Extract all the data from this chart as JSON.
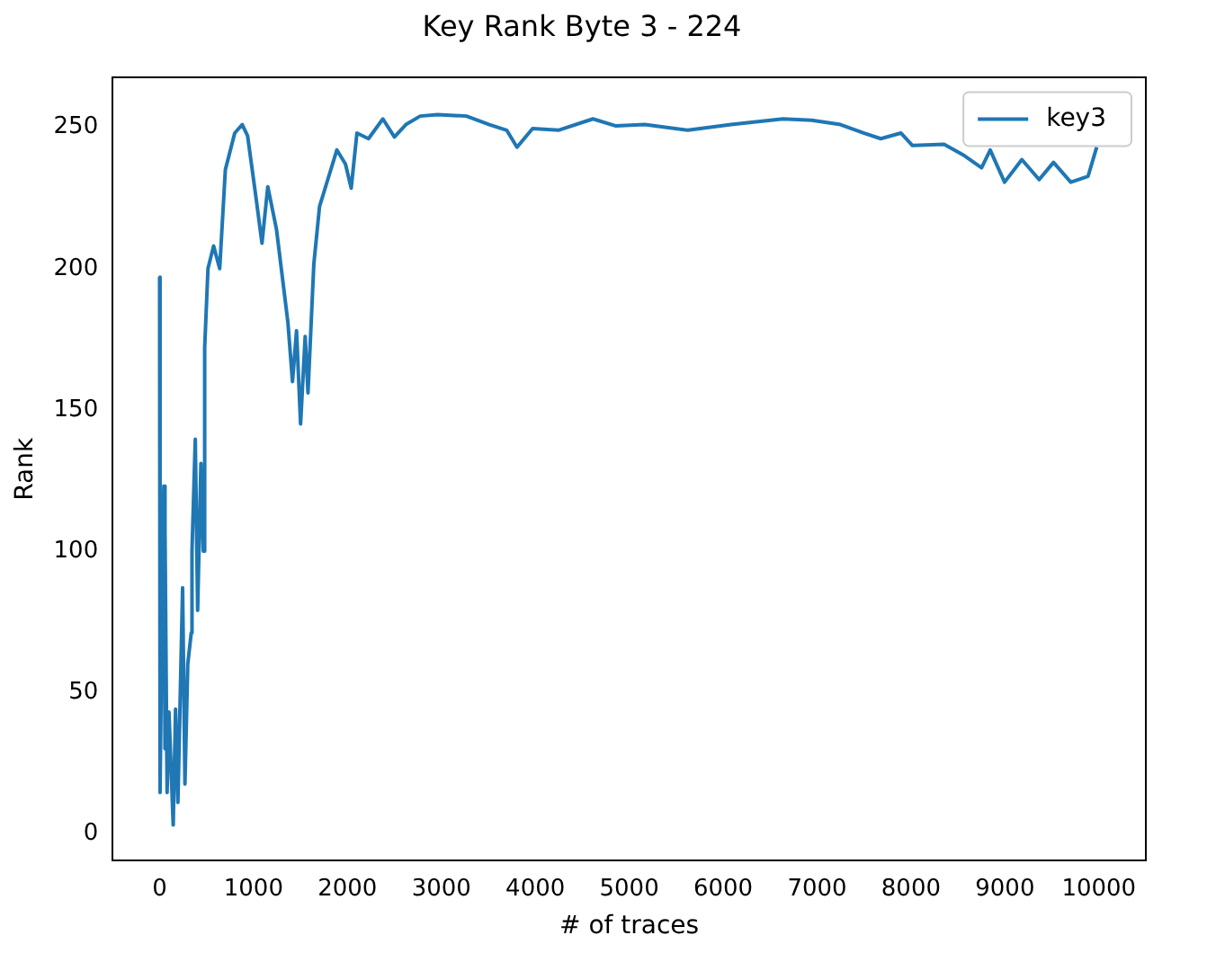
{
  "chart_data": {
    "type": "line",
    "title": "Key Rank Byte 3 - 224",
    "xlabel": "# of traces",
    "ylabel": "Rank",
    "xlim": [
      -500,
      10500
    ],
    "xticks": [
      0,
      1000,
      2000,
      3000,
      4000,
      5000,
      6000,
      7000,
      8000,
      9000,
      10000
    ],
    "ylim": [
      -9.6,
      267.6
    ],
    "yticks": [
      0,
      50,
      100,
      150,
      200,
      250
    ],
    "legend": "top right",
    "grid": false,
    "marker": "none",
    "line_style": "solid",
    "series": [
      {
        "name": "key3",
        "color": "#1f77b4",
        "x": [
          0,
          5,
          20,
          45,
          55,
          60,
          80,
          100,
          145,
          170,
          195,
          245,
          270,
          300,
          337,
          345,
          380,
          405,
          440,
          465,
          480,
          515,
          575,
          640,
          700,
          800,
          880,
          937,
          1029,
          1090,
          1152,
          1244,
          1305,
          1366,
          1415,
          1458,
          1501,
          1550,
          1580,
          1642,
          1703,
          1795,
          1887,
          1979,
          2040,
          2101,
          2224,
          2377,
          2500,
          2622,
          2775,
          2959,
          3266,
          3511,
          3695,
          3805,
          3971,
          4246,
          4614,
          4859,
          5165,
          5625,
          6085,
          6636,
          6943,
          7249,
          7494,
          7678,
          7892,
          8015,
          8352,
          8567,
          8751,
          8843,
          8996,
          9180,
          9364,
          9517,
          9701,
          9885,
          9977
        ],
        "values": [
          197,
          14.5,
          60,
          123,
          30,
          107.5,
          14.5,
          43,
          3,
          44,
          11,
          87,
          17.5,
          60,
          71,
          100,
          139.6,
          79,
          131,
          100,
          172,
          200,
          208,
          200,
          235,
          248,
          251,
          247,
          224.5,
          209,
          229,
          214,
          197.5,
          181,
          160,
          178,
          145,
          176,
          156,
          201.6,
          222,
          232,
          242,
          237,
          228.5,
          248,
          246,
          253,
          246.6,
          251,
          254,
          254.5,
          254,
          251,
          249,
          243,
          249.6,
          249,
          253,
          250.5,
          251,
          249,
          251,
          253,
          252.5,
          251,
          248,
          246,
          248,
          243.6,
          244,
          240,
          235.7,
          242,
          230.6,
          238.6,
          231.5,
          237.6,
          230.6,
          232.7,
          243
        ]
      }
    ]
  }
}
